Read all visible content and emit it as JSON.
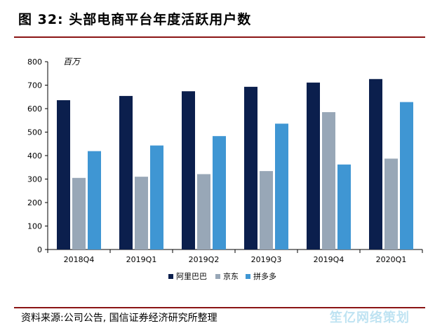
{
  "figure": {
    "title": "图 32: 头部电商平台年度活跃用户数",
    "source": "资料来源:公司公告, 国信证券经济研究所整理",
    "watermark": "笙亿网络策划"
  },
  "chart_data": {
    "type": "bar",
    "title": "",
    "xlabel": "",
    "ylabel": "百万",
    "ylim": [
      0,
      800
    ],
    "yticks": [
      0,
      100,
      200,
      300,
      400,
      500,
      600,
      700,
      800
    ],
    "grid": false,
    "legend_position": "bottom",
    "categories": [
      "2018Q4",
      "2019Q1",
      "2019Q2",
      "2019Q3",
      "2019Q4",
      "2020Q1"
    ],
    "series": [
      {
        "name": "阿里巴巴",
        "color": "#0b1f4d",
        "values": [
          636,
          654,
          674,
          693,
          711,
          726
        ]
      },
      {
        "name": "京东",
        "color": "#98a7b7",
        "values": [
          305,
          310,
          321,
          334,
          585,
          387
        ]
      },
      {
        "name": "拼多多",
        "color": "#3f96d3",
        "values": [
          419,
          443,
          483,
          536,
          362,
          628
        ]
      }
    ]
  }
}
